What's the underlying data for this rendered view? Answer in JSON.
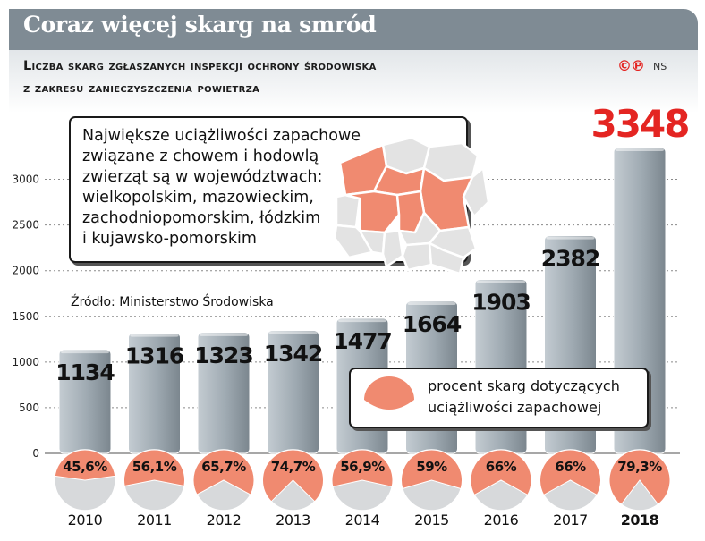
{
  "header": {
    "title": "Coraz więcej skarg na smród",
    "subtitle_line1": "Liczba skarg zgłaszanych inspekcji ochrony środowiska",
    "subtitle_line2": "z zakresu zanieczyszczenia powietrza",
    "logo": "©℗",
    "author": "NS"
  },
  "note": {
    "lines": [
      "Największe uciążliwości zapachowe",
      "związane z chowem i hodowlą",
      "zwierząt są w województwach:",
      "wielkopolskim, mazowieckim,",
      "zachodniopomorskim, łódzkim",
      "i kujawsko-pomorskim"
    ]
  },
  "source": "Źródło: Ministerstwo Środowiska",
  "legend": {
    "line1": "procent skarg dotyczących",
    "line2": "uciążliwości zapachowej"
  },
  "colors": {
    "bar": "#9aa6ae",
    "highlight": "#e42522",
    "pie_fill": "#f08a70",
    "pie_rest": "#d7d9db",
    "map_highlight": "#f08a70",
    "map_other": "#e3e3e3"
  },
  "chart_data": {
    "type": "bar",
    "categories": [
      "2010",
      "2011",
      "2012",
      "2013",
      "2014",
      "2015",
      "2016",
      "2017",
      "2018"
    ],
    "values": [
      1134,
      1316,
      1323,
      1342,
      1477,
      1664,
      1903,
      2382,
      3348
    ],
    "value_labels": [
      "1134",
      "1316",
      "1323",
      "1342",
      "1477",
      "1664",
      "1903",
      "2382",
      "3348"
    ],
    "percent_values": [
      45.6,
      56.1,
      65.7,
      74.7,
      56.9,
      59,
      66,
      66,
      79.3
    ],
    "percent_labels": [
      "45,6%",
      "56,1%",
      "65,7%",
      "74,7%",
      "56,9%",
      "59%",
      "66%",
      "66%",
      "79,3%"
    ],
    "y_ticks": [
      0,
      500,
      1000,
      1500,
      2000,
      2500,
      3000
    ],
    "y_tick_labels": [
      "0",
      "500",
      "1000",
      "1500",
      "2000",
      "2500",
      "3000"
    ],
    "ylim": [
      0,
      3348
    ],
    "highlight_category": "2018",
    "grid": true
  }
}
